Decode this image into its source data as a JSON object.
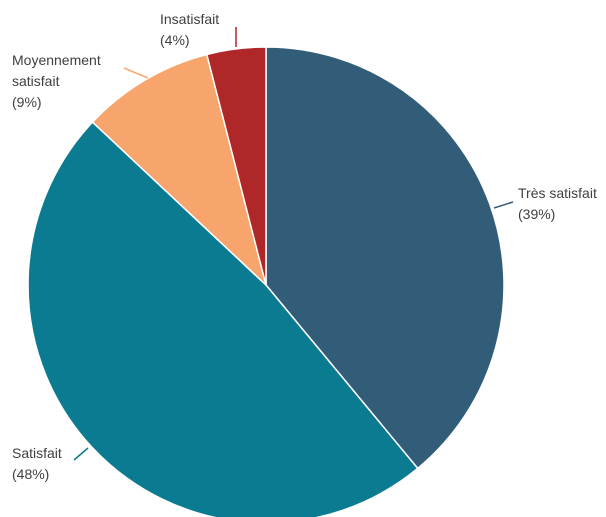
{
  "chart_data": {
    "type": "pie",
    "title": "",
    "start_angle_deg": 0,
    "direction": "clockwise",
    "slices": [
      {
        "label_lines": [
          "Très satisfait",
          "(39%)"
        ],
        "value": 39,
        "color": "#325d79"
      },
      {
        "label_lines": [
          "Satisfait",
          "(48%)"
        ],
        "value": 48,
        "color": "#0a7b90"
      },
      {
        "label_lines": [
          "Moyennement",
          "satisfait",
          "(9%)"
        ],
        "value": 9,
        "color": "#f7a56c"
      },
      {
        "label_lines": [
          "Insatisfait",
          "(4%)"
        ],
        "value": 4,
        "color": "#b0272a"
      }
    ]
  }
}
